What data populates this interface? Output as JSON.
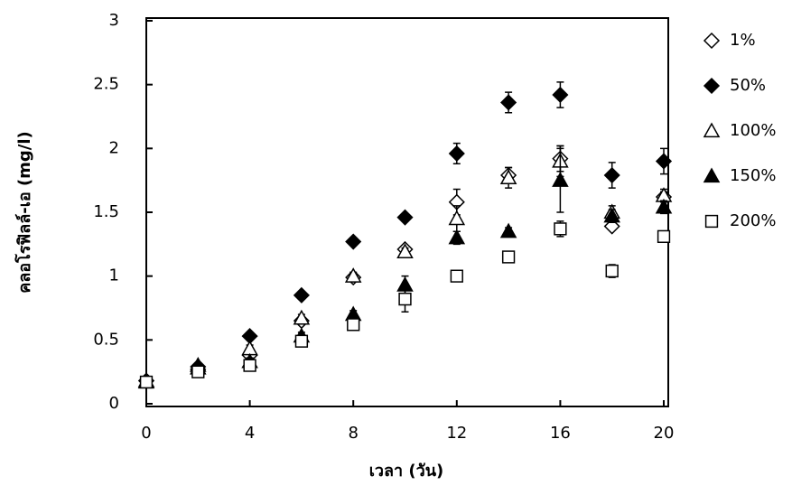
{
  "chart_data": {
    "type": "scatter",
    "y_label": "คลอโรฟิลล์-เอ (mg/l)",
    "x_label": "เวลา (วัน)",
    "x": [
      0,
      2,
      4,
      6,
      8,
      10,
      12,
      14,
      16,
      18,
      20
    ],
    "xlim": [
      0,
      20
    ],
    "xticks": [
      0,
      4,
      8,
      12,
      16,
      20
    ],
    "ylim": [
      0,
      3
    ],
    "yticks": [
      0,
      0.5,
      1,
      1.5,
      2,
      2.5,
      3
    ],
    "grid": false,
    "legend": "right",
    "series": [
      {
        "name": "1%",
        "color": "#000000",
        "marker": "diamond",
        "filled": false,
        "values": [
          0.18,
          0.27,
          0.38,
          0.65,
          0.99,
          1.21,
          1.58,
          1.79,
          1.92,
          1.39,
          1.62
        ],
        "errors": [
          0.02,
          0.02,
          0.03,
          0.03,
          0.03,
          0.03,
          0.1,
          0.06,
          0.1,
          0.03,
          0.04
        ]
      },
      {
        "name": "50%",
        "color": "#000000",
        "marker": "diamond",
        "filled": true,
        "values": [
          0.18,
          0.29,
          0.53,
          0.85,
          1.27,
          1.46,
          1.96,
          2.36,
          2.42,
          1.79,
          1.9
        ],
        "errors": [
          0.02,
          0.02,
          0.03,
          0.03,
          0.03,
          0.03,
          0.08,
          0.08,
          0.1,
          0.1,
          0.1
        ]
      },
      {
        "name": "100%",
        "color": "#000000",
        "marker": "triangle",
        "filled": false,
        "values": [
          0.18,
          0.28,
          0.43,
          0.67,
          1.0,
          1.19,
          1.45,
          1.77,
          1.9,
          1.5,
          1.63
        ],
        "errors": [
          0.02,
          0.02,
          0.03,
          0.03,
          0.03,
          0.03,
          0.1,
          0.08,
          0.12,
          0.05,
          0.05
        ]
      },
      {
        "name": "150%",
        "color": "#000000",
        "marker": "triangle",
        "filled": true,
        "values": [
          0.17,
          0.3,
          0.33,
          0.53,
          0.7,
          0.93,
          1.3,
          1.35,
          1.75,
          1.47,
          1.54
        ],
        "errors": [
          0.02,
          0.02,
          0.03,
          0.03,
          0.03,
          0.07,
          0.05,
          0.03,
          0.25,
          0.05,
          0.05
        ]
      },
      {
        "name": "200%",
        "color": "#000000",
        "marker": "square",
        "filled": false,
        "values": [
          0.17,
          0.25,
          0.3,
          0.49,
          0.62,
          0.82,
          1.0,
          1.15,
          1.37,
          1.04,
          1.31
        ],
        "errors": [
          0.02,
          0.02,
          0.02,
          0.03,
          0.03,
          0.1,
          0.04,
          0.03,
          0.06,
          0.05,
          0.04
        ]
      }
    ]
  }
}
